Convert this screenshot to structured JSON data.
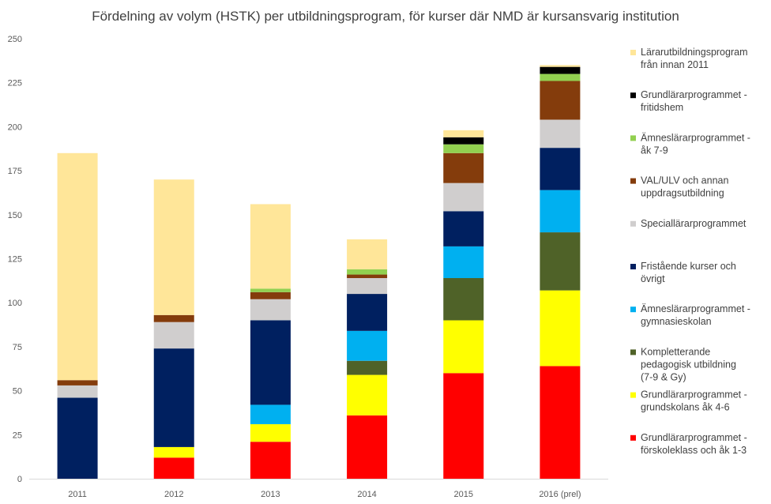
{
  "chart_data": {
    "type": "bar",
    "stacked": true,
    "title": "Fördelning av volym (HSTK) per utbildningsprogram, för kurser där NMD är kursansvarig institution",
    "categories": [
      "2011",
      "2012",
      "2013",
      "2014",
      "2015",
      "2016 (prel)"
    ],
    "ylim": [
      0,
      250
    ],
    "yticks": [
      0,
      25,
      50,
      75,
      100,
      125,
      150,
      175,
      200,
      225,
      250
    ],
    "grid": false,
    "legend_position": "right",
    "series": [
      {
        "name": "Grundlärarprogrammet - förskoleklass och åk 1-3",
        "color": "#ff0000",
        "values": [
          0,
          12,
          21,
          36,
          60,
          64
        ]
      },
      {
        "name": "Grundlärarprogrammet - grundskolans åk 4-6",
        "color": "#ffff00",
        "values": [
          0,
          6,
          10,
          23,
          30,
          43
        ]
      },
      {
        "name": "Kompletterande pedagogisk utbildning (7-9 & Gy)",
        "color": "#4f6228",
        "values": [
          0,
          0,
          0,
          8,
          24,
          33
        ]
      },
      {
        "name": "Ämneslärarprogrammet - gymnasieskolan",
        "color": "#00b0f0",
        "values": [
          0,
          0,
          11,
          17,
          18,
          24
        ]
      },
      {
        "name": "Fristående kurser och övrigt",
        "color": "#002060",
        "values": [
          46,
          56,
          48,
          21,
          20,
          24
        ]
      },
      {
        "name": "Speciallärarprogrammet",
        "color": "#d0cece",
        "values": [
          7,
          15,
          12,
          9,
          16,
          16
        ]
      },
      {
        "name": "VAL/ULV och annan uppdragsutbildning",
        "color": "#843c0c",
        "values": [
          3,
          4,
          4,
          2,
          17,
          22
        ]
      },
      {
        "name": "Ämneslärarprogrammet - åk 7-9",
        "color": "#92d050",
        "values": [
          0,
          0,
          2,
          3,
          5,
          4
        ]
      },
      {
        "name": "Grundlärarprogrammet - fritidshem",
        "color": "#000000",
        "values": [
          0,
          0,
          0,
          0,
          4,
          4
        ]
      },
      {
        "name": "Lärarutbildningsprogram från innan 2011",
        "color": "#ffe699",
        "values": [
          129,
          77,
          48,
          17,
          4,
          1
        ]
      }
    ]
  }
}
